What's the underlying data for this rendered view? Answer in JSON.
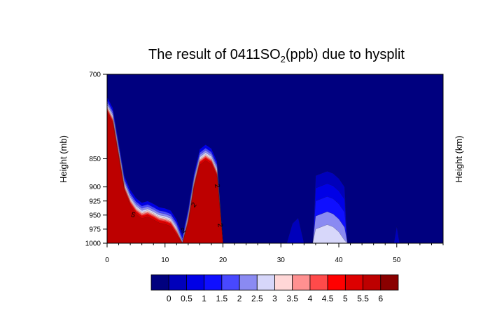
{
  "chart_data": {
    "type": "heatmap",
    "title": {
      "prefix": "The result of 0411SO",
      "subscript": "2",
      "suffix": "(ppb)  due to hysplit"
    },
    "xlabel": "",
    "ylabel": "Height (mb)",
    "ylabel_right": "Height (km)",
    "xlim": [
      0,
      58
    ],
    "ylim": [
      700,
      1000
    ],
    "y_axis_inverted": true,
    "x_ticks": [
      0,
      10,
      20,
      30,
      40,
      50
    ],
    "x_tick_labels": [
      "0",
      "10",
      "20",
      "30",
      "40",
      "50"
    ],
    "x_minor_tick_step": 2,
    "y_ticks": [
      700,
      850,
      900,
      925,
      950,
      975,
      1000
    ],
    "y_tick_labels": [
      "700",
      "850",
      "900",
      "925",
      "950",
      "975",
      "1000"
    ],
    "background_value": 0,
    "colorbar": {
      "labels": [
        "0",
        "0.5",
        "1",
        "1.5",
        "2",
        "2.5",
        "3",
        "3.5",
        "4",
        "4.5",
        "5",
        "5.5",
        "6"
      ],
      "colors": [
        "#00007f",
        "#0000bb",
        "#0000e6",
        "#0f0fff",
        "#4848ff",
        "#8a8af2",
        "#d7d7fa",
        "#ffd7d7",
        "#ff9090",
        "#ff4a4a",
        "#ff0000",
        "#dd0000",
        "#bd0000",
        "#8a0000"
      ]
    },
    "plumes": [
      {
        "name": "left-ridge",
        "x": [
          0,
          1,
          2,
          3,
          4,
          5,
          6,
          7,
          8,
          9,
          10,
          11,
          12,
          13,
          14,
          15,
          16,
          17,
          18,
          19,
          20
        ],
        "top": [
          740,
          760,
          820,
          880,
          905,
          920,
          928,
          925,
          930,
          936,
          938,
          942,
          958,
          985,
          937,
          875,
          833,
          825,
          832,
          855,
          1000
        ],
        "peak": [
          6,
          6,
          6,
          6,
          6,
          6,
          6,
          6,
          6,
          6,
          6,
          6,
          6,
          6,
          6,
          6,
          6,
          6,
          6,
          6,
          0
        ],
        "layers": [
          {
            "level": 1,
            "offset": 0
          },
          {
            "level": 2,
            "offset": 6
          },
          {
            "level": 2.5,
            "offset": 10
          },
          {
            "level": 3,
            "offset": 14
          },
          {
            "level": 3.5,
            "offset": 17
          },
          {
            "level": 4,
            "offset": 19
          },
          {
            "level": 4.5,
            "offset": 21
          },
          {
            "level": 5,
            "offset": 23
          },
          {
            "level": 5.5,
            "offset": 25
          },
          {
            "level": 6,
            "offset": 28
          }
        ]
      },
      {
        "name": "column-32",
        "x": [
          31,
          32,
          33,
          34
        ],
        "top": [
          1000,
          965,
          955,
          1000
        ],
        "layers": [
          {
            "level": 0.5,
            "offset": 0
          }
        ]
      },
      {
        "name": "column-38",
        "x": [
          35.5,
          36,
          37,
          38,
          39,
          40,
          41,
          41.5
        ],
        "top": [
          1000,
          880,
          876,
          872,
          876,
          885,
          900,
          1000
        ],
        "layers": [
          {
            "level": 0.5,
            "offset": 0
          },
          {
            "level": 1,
            "offset": 22
          },
          {
            "level": 1.5,
            "offset": 45
          },
          {
            "level": 2.5,
            "offset": 72
          },
          {
            "level": 3,
            "offset": 95
          }
        ]
      },
      {
        "name": "column-50",
        "x": [
          49.5,
          50,
          50.5
        ],
        "top": [
          1000,
          970,
          1000
        ],
        "layers": [
          {
            "level": 0.5,
            "offset": 0
          }
        ]
      }
    ],
    "contour_labels": [
      {
        "text": "5",
        "x": 4.5,
        "y": 950,
        "rotate": 20
      },
      {
        "text": "2",
        "x": 15,
        "y": 932,
        "rotate": -50
      },
      {
        "text": "2",
        "x": 19,
        "y": 898,
        "rotate": 80
      },
      {
        "text": "2",
        "x": 19.5,
        "y": 968,
        "rotate": 80
      },
      {
        "text": "2",
        "x": 13.2,
        "y": 977,
        "rotate": -40
      }
    ]
  }
}
